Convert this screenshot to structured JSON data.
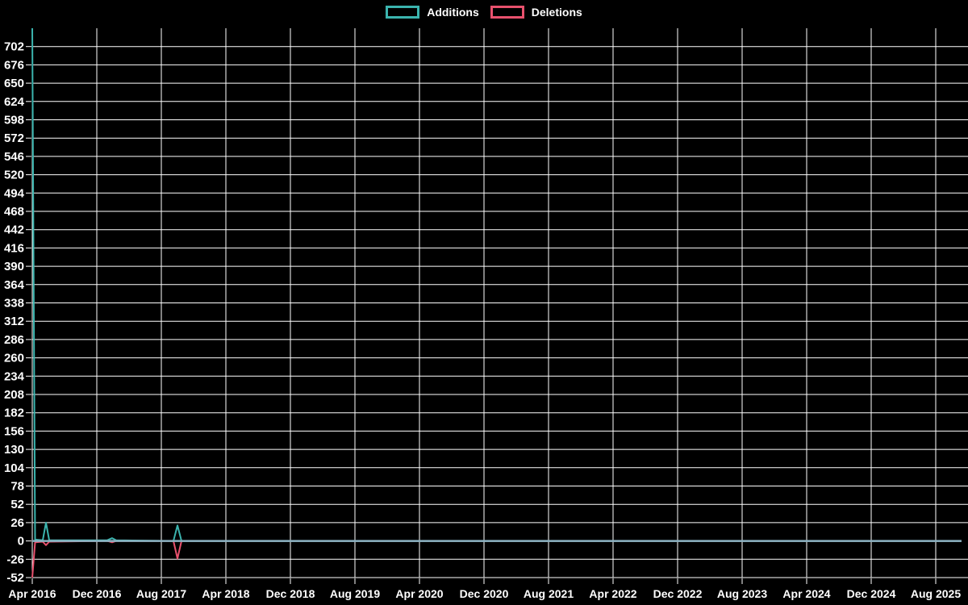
{
  "chart_data": {
    "type": "line",
    "title": "",
    "legend_position": "top",
    "colors": {
      "background": "#000000",
      "grid": "#ffffff",
      "text": "#ffffff",
      "zero_overlap_line": "#8cb2c2"
    },
    "x_axis": {
      "tick_labels": [
        "Apr 2016",
        "Dec 2016",
        "Aug 2017",
        "Apr 2018",
        "Dec 2018",
        "Aug 2019",
        "Apr 2020",
        "Dec 2020",
        "Aug 2021",
        "Apr 2022",
        "Dec 2022",
        "Aug 2023",
        "Apr 2024",
        "Dec 2024",
        "Aug 2025"
      ],
      "tick_interval_months": 8,
      "total_months": 116,
      "start_label": "Apr 2016"
    },
    "y_axis": {
      "min": -52,
      "max": 728,
      "tick_step": 26,
      "tick_labels": [
        702,
        676,
        650,
        624,
        598,
        572,
        546,
        520,
        494,
        468,
        442,
        416,
        390,
        364,
        338,
        312,
        286,
        260,
        234,
        208,
        182,
        156,
        130,
        104,
        78,
        52,
        26,
        0,
        -26,
        -52
      ]
    },
    "series": [
      {
        "name": "Additions",
        "color": "#3bb4ae",
        "points": [
          [
            0,
            728
          ],
          [
            0.35,
            2
          ],
          [
            1.3,
            1
          ],
          [
            1.7,
            26
          ],
          [
            2.1,
            1
          ],
          [
            9.3,
            1
          ],
          [
            9.9,
            4
          ],
          [
            10.4,
            1
          ],
          [
            17.5,
            0
          ],
          [
            18,
            22
          ],
          [
            18.5,
            0
          ],
          [
            115.2,
            0
          ]
        ]
      },
      {
        "name": "Deletions",
        "color": "#e8516d",
        "points": [
          [
            0,
            -52
          ],
          [
            0.35,
            -2
          ],
          [
            1.3,
            -1
          ],
          [
            1.7,
            -6
          ],
          [
            2.1,
            -1
          ],
          [
            9.3,
            0
          ],
          [
            9.9,
            -2
          ],
          [
            10.4,
            0
          ],
          [
            17.5,
            0
          ],
          [
            18,
            -25
          ],
          [
            18.5,
            0
          ],
          [
            115.2,
            0
          ]
        ]
      }
    ],
    "data_extent_months": [
      0,
      115.2
    ]
  }
}
